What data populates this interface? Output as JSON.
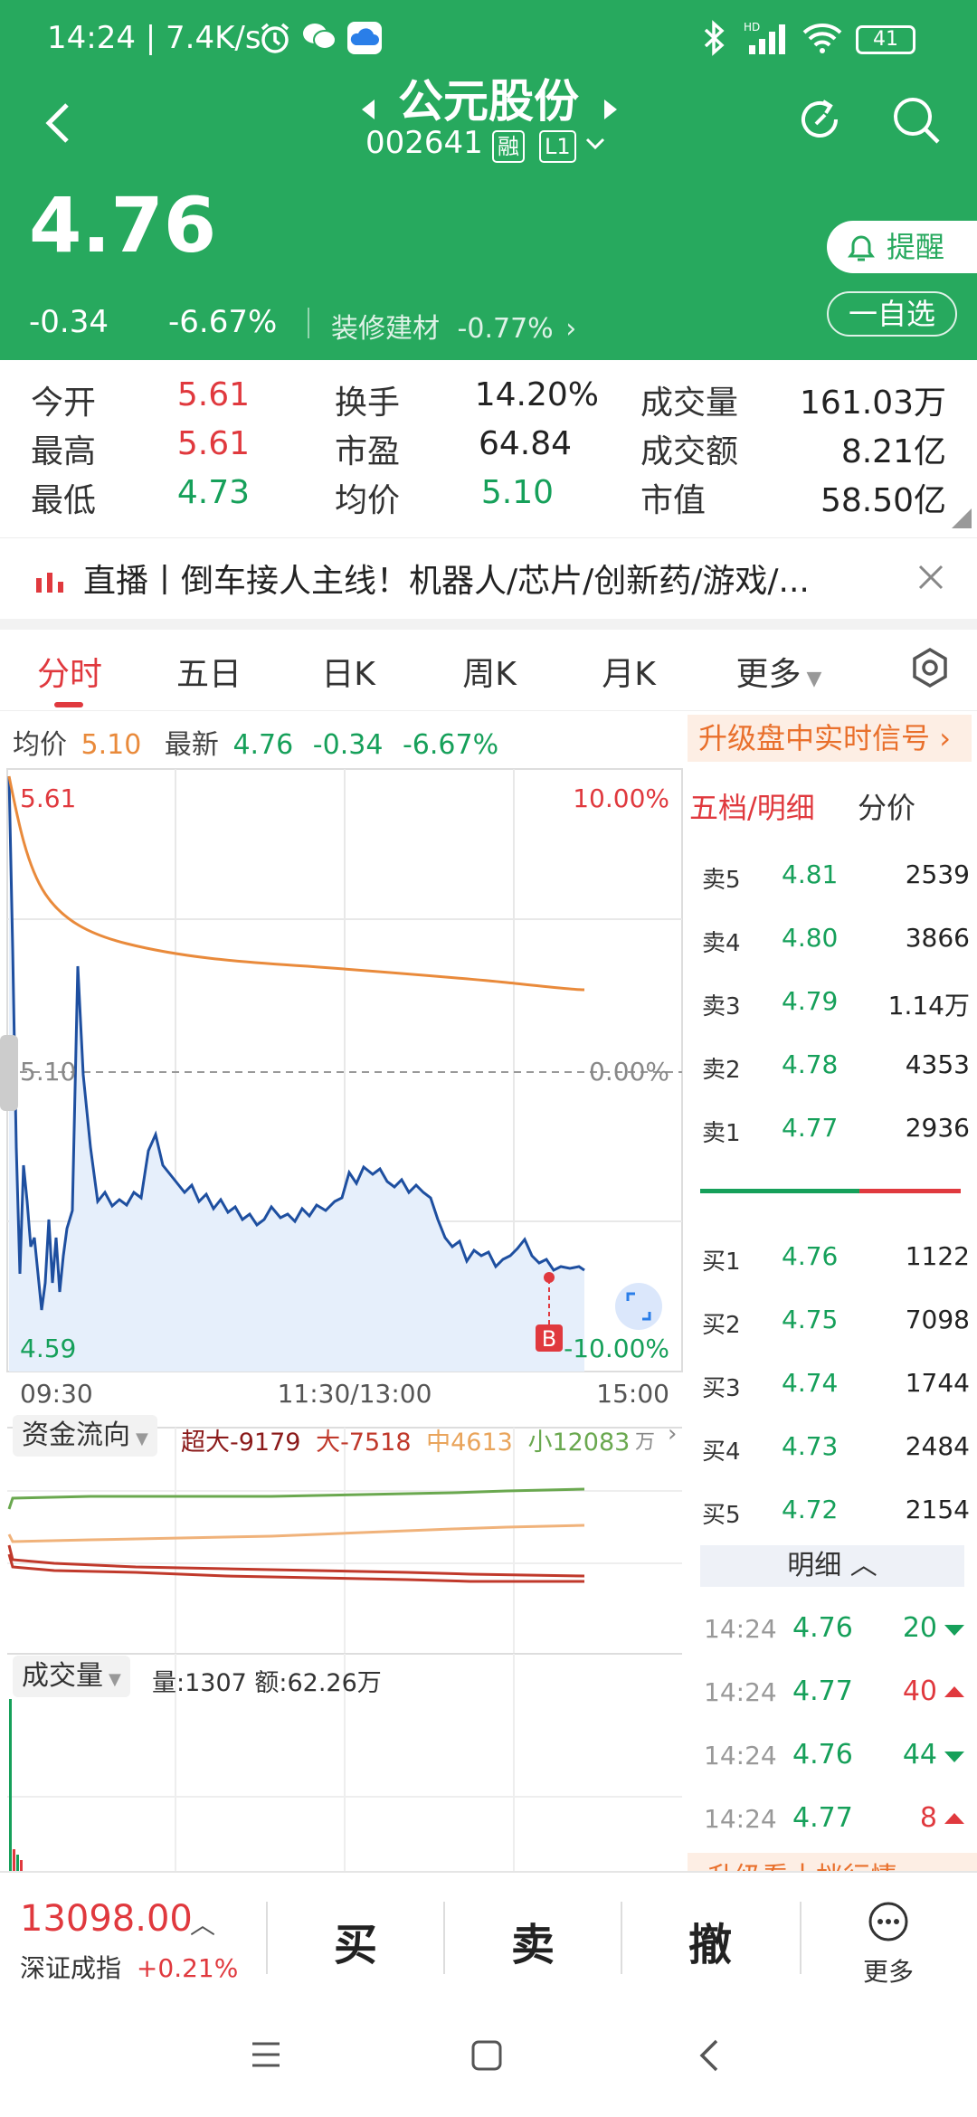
{
  "status_bar": {
    "time_speed": "14:24 | 7.4K/s",
    "battery": "41"
  },
  "header": {
    "stock_name": "公元股份",
    "stock_code": "002641",
    "badge_margin": "融",
    "badge_level": "L1",
    "price": "4.76",
    "change": "-0.34",
    "change_pct": "-6.67%",
    "sector_name": "装修建材",
    "sector_pct": "-0.77%",
    "alert_label": "提醒",
    "watch_label": "一自选"
  },
  "stats": [
    [
      {
        "label": "今开",
        "value": "5.61",
        "color": "red"
      },
      {
        "label": "换手",
        "value": "14.20%",
        "color": "dark"
      },
      {
        "label": "成交量",
        "value": "161.03万",
        "color": "dark"
      }
    ],
    [
      {
        "label": "最高",
        "value": "5.61",
        "color": "red"
      },
      {
        "label": "市盈",
        "value": "64.84",
        "color": "dark"
      },
      {
        "label": "成交额",
        "value": "8.21亿",
        "color": "dark"
      }
    ],
    [
      {
        "label": "最低",
        "value": "4.73",
        "color": "green"
      },
      {
        "label": "均价",
        "value": "5.10",
        "color": "green"
      },
      {
        "label": "市值",
        "value": "58.50亿",
        "color": "dark"
      }
    ]
  ],
  "news": {
    "text": "直播丨倒车接人主线！机器人/芯片/创新药/游戏/..."
  },
  "tabs": [
    "分时",
    "五日",
    "日K",
    "周K",
    "月K",
    "更多"
  ],
  "info_line": {
    "avg_label": "均价",
    "avg_value": "5.10",
    "latest_label": "最新",
    "latest_value": "4.76",
    "latest_change": "-0.34",
    "latest_pct": "-6.67%",
    "upgrade": "升级盘中实时信号"
  },
  "chart": {
    "top_left": "5.61",
    "top_right": "10.00%",
    "mid_left": "5.10",
    "mid_right": "0.00%",
    "bottom_left": "4.59",
    "bottom_right": "-10.00%",
    "time_start": "09:30",
    "time_mid": "11:30/13:00",
    "time_end": "15:00",
    "marker": "B"
  },
  "money_flow": {
    "selector": "资金流向",
    "super_label": "超大",
    "super_val": "-9179",
    "large_label": "大",
    "large_val": "-7518",
    "mid_label": "中",
    "mid_val": "4613",
    "small_label": "小",
    "small_val": "12083",
    "unit": "万"
  },
  "volume": {
    "selector": "成交量",
    "info": "量:1307 额:62.26万"
  },
  "order_book": {
    "tab_active": "五档/明细",
    "tab_other": "分价",
    "asks": [
      {
        "label": "卖5",
        "price": "4.81",
        "vol": "2539"
      },
      {
        "label": "卖4",
        "price": "4.80",
        "vol": "3866"
      },
      {
        "label": "卖3",
        "price": "4.79",
        "vol": "1.14万"
      },
      {
        "label": "卖2",
        "price": "4.78",
        "vol": "4353"
      },
      {
        "label": "卖1",
        "price": "4.77",
        "vol": "2936"
      }
    ],
    "bids": [
      {
        "label": "买1",
        "price": "4.76",
        "vol": "1122"
      },
      {
        "label": "买2",
        "price": "4.75",
        "vol": "7098"
      },
      {
        "label": "买3",
        "price": "4.74",
        "vol": "1744"
      },
      {
        "label": "买4",
        "price": "4.73",
        "vol": "2484"
      },
      {
        "label": "买5",
        "price": "4.72",
        "vol": "2154"
      }
    ],
    "detail_label": "明细",
    "ticks": [
      {
        "time": "14:24",
        "price": "4.76",
        "vol": "20",
        "dir": "down"
      },
      {
        "time": "14:24",
        "price": "4.77",
        "vol": "40",
        "dir": "up"
      },
      {
        "time": "14:24",
        "price": "4.76",
        "vol": "44",
        "dir": "down"
      },
      {
        "time": "14:24",
        "price": "4.77",
        "vol": "8",
        "dir": "up"
      }
    ],
    "upgrade_ten": "升级看十档行情"
  },
  "bottom_bar": {
    "index_value": "13098.00",
    "index_name": "深证成指",
    "index_pct": "+0.21%",
    "buy": "买",
    "sell": "卖",
    "cancel": "撤",
    "more": "更多"
  },
  "colors": {
    "brand_green": "#27a95e",
    "up_red": "#e0393e",
    "down_green": "#16a05a",
    "avg_orange": "#e98a3b",
    "price_blue": "#1e4fa0"
  }
}
